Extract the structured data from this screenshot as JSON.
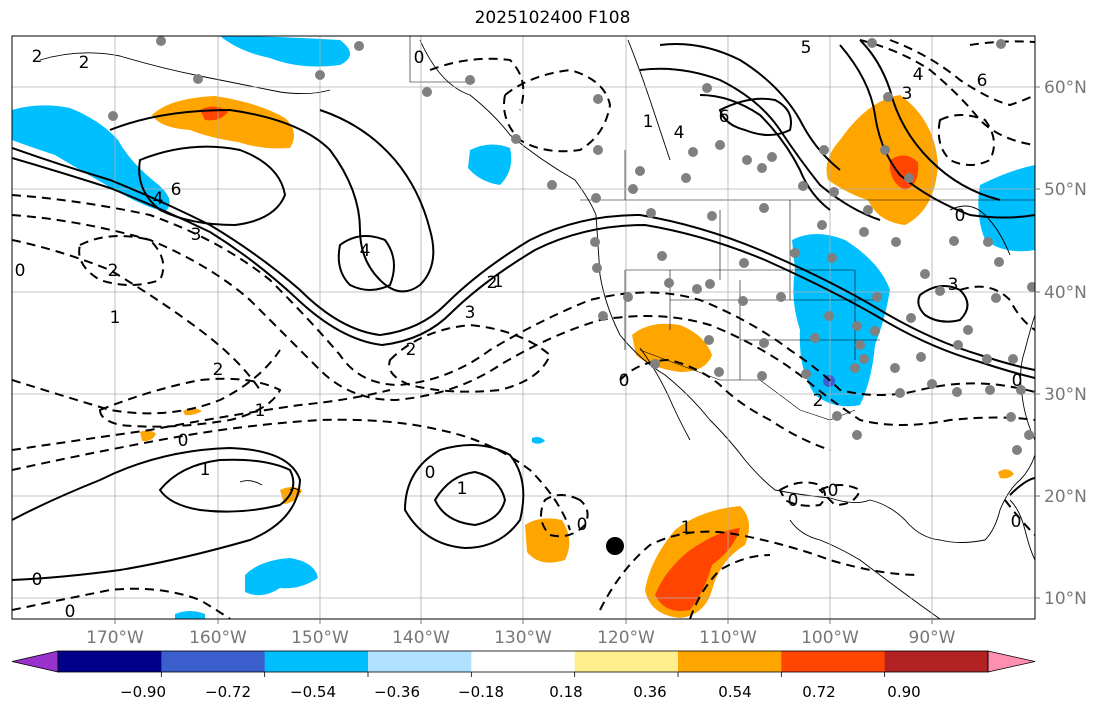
{
  "title": "2025102400 F108",
  "map": {
    "longitude_labels": [
      "170°W",
      "160°W",
      "150°W",
      "140°W",
      "130°W",
      "120°W",
      "110°W",
      "100°W",
      "90°W"
    ],
    "latitude_labels": [
      "60°N",
      "50°N",
      "40°N",
      "30°N",
      "20°N",
      "10°N"
    ],
    "contour_labels": [
      "2",
      "2",
      "6",
      "4",
      "4",
      "3",
      "2",
      "1",
      "2",
      "1",
      "0",
      "2",
      "1",
      "0",
      "1",
      "0",
      "0",
      "0",
      "1",
      "0",
      "1",
      "2",
      "3",
      "0",
      "1",
      "4",
      "6",
      "5",
      "3",
      "4",
      "6",
      "3",
      "0",
      "2",
      "0",
      "0",
      "0",
      "0",
      "0"
    ],
    "positive_color": "#ffa500",
    "strong_positive_color": "#ff4500",
    "negative_color": "#00bfff",
    "station_marker_color": "#808080",
    "center_marker_color": "#000000"
  },
  "colorbar": {
    "tick_labels": [
      "−0.90",
      "−0.72",
      "−0.54",
      "−0.36",
      "−0.18",
      "0.18",
      "0.36",
      "0.54",
      "0.72",
      "0.90"
    ],
    "colors": [
      "#9932cc",
      "#00008b",
      "#3a5fcd",
      "#00bfff",
      "#b0e2ff",
      "#ffffff",
      "#ffee8c",
      "#ffa500",
      "#ff4500",
      "#b22222",
      "#ff8fb0"
    ]
  }
}
